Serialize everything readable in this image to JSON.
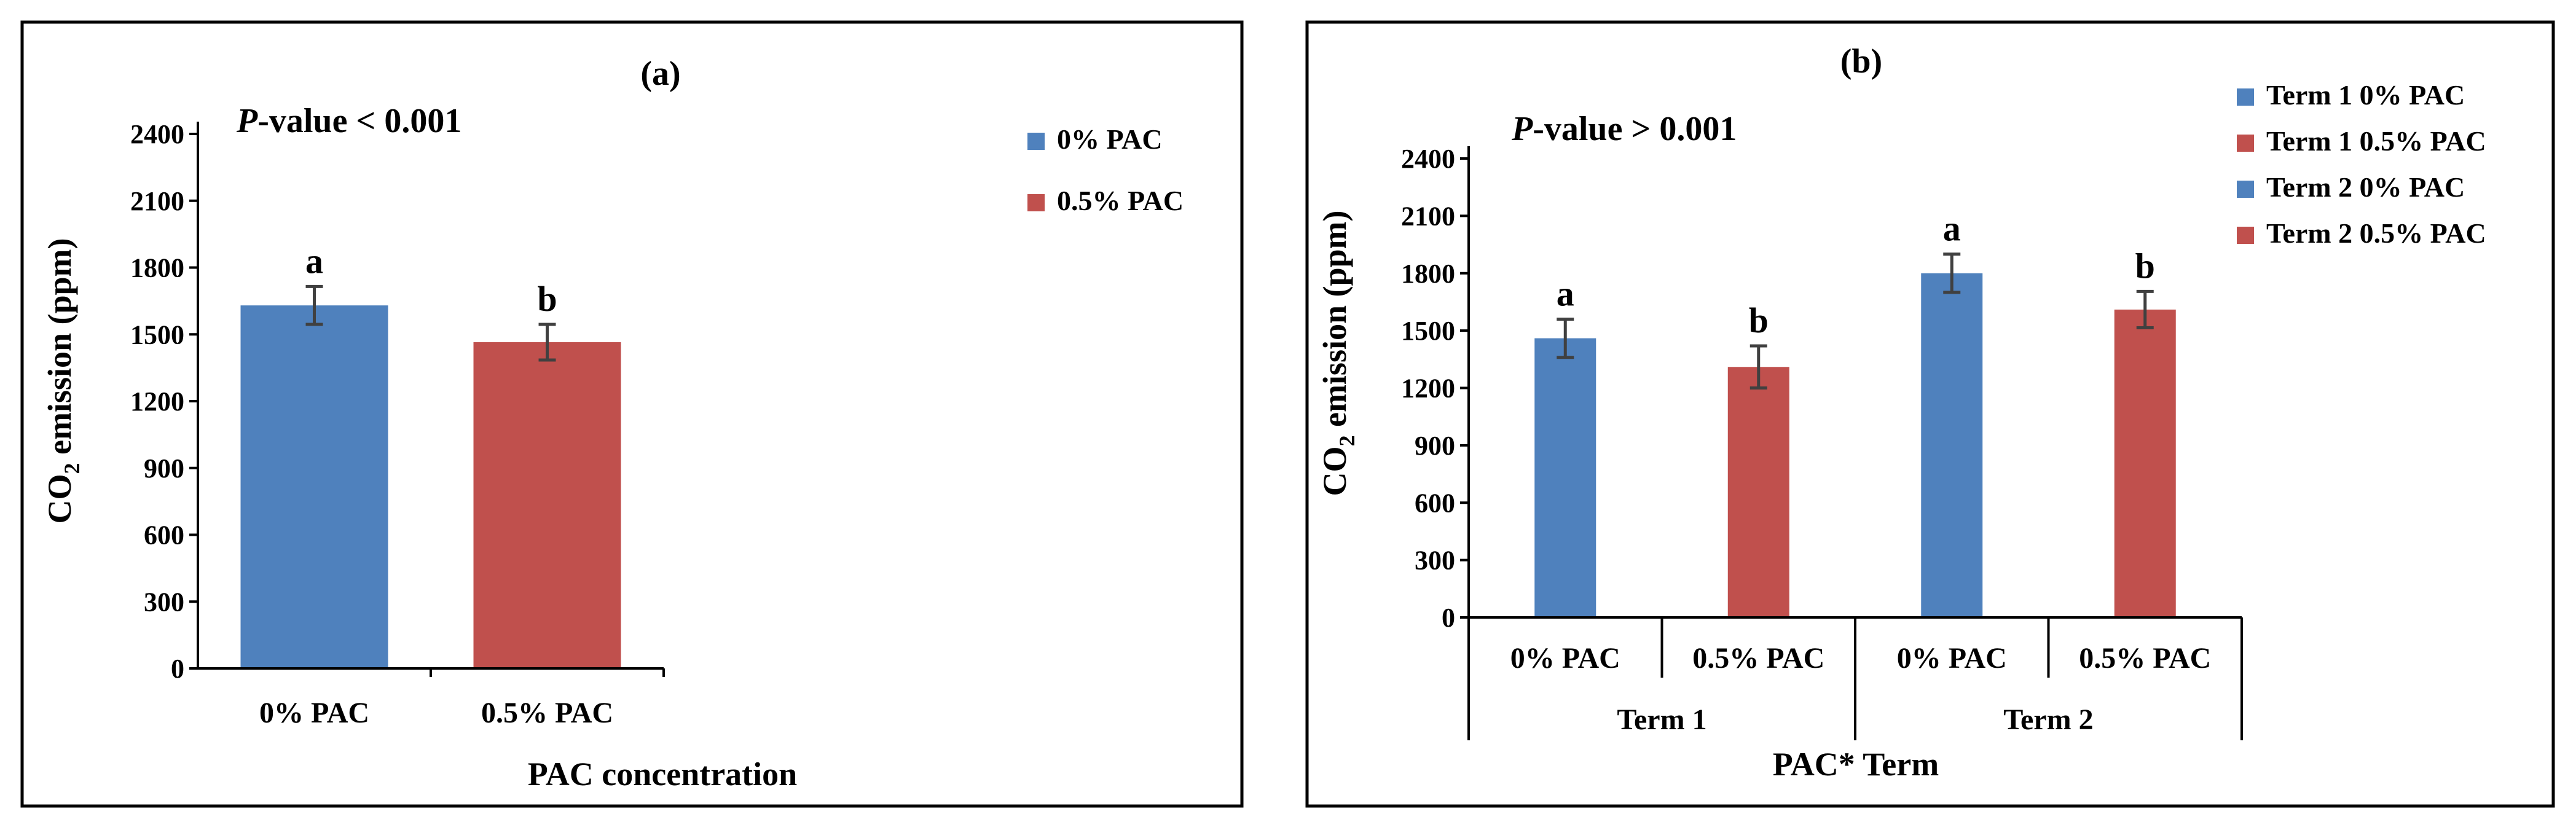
{
  "chart_data": [
    {
      "type": "bar",
      "panel_label": "(a)",
      "p_value_italic": "P",
      "p_value_rest": "-value < 0.001",
      "categories": [
        "0% PAC",
        "0.5% PAC"
      ],
      "values": [
        1630,
        1465
      ],
      "errors": [
        85,
        80
      ],
      "significance": [
        "a",
        "b"
      ],
      "colors": [
        "#4f81bd",
        "#c0504d"
      ],
      "ylabel_main": "CO",
      "ylabel_sub": "2",
      "ylabel_rest": " emission (ppm)",
      "xlabel": "PAC concentration",
      "ylim": [
        0,
        2400
      ],
      "yticks": [
        0,
        300,
        600,
        900,
        1200,
        1500,
        1800,
        2100,
        2400
      ],
      "legend": [
        {
          "name": "0% PAC",
          "color": "#4f81bd"
        },
        {
          "name": "0.5% PAC",
          "color": "#c0504d"
        }
      ],
      "legend_position": "top-right"
    },
    {
      "type": "bar",
      "panel_label": "(b)",
      "p_value_italic": "P",
      "p_value_rest": "-value > 0.001",
      "categories": [
        "0% PAC",
        "0.5% PAC",
        "0% PAC",
        "0.5% PAC"
      ],
      "groups": [
        "Term 1",
        "Term 2"
      ],
      "values": [
        1460,
        1310,
        1800,
        1610
      ],
      "errors": [
        100,
        110,
        100,
        95
      ],
      "significance": [
        "a",
        "b",
        "a",
        "b"
      ],
      "colors": [
        "#4f81bd",
        "#c0504d",
        "#4f81bd",
        "#c0504d"
      ],
      "ylabel_main": "CO",
      "ylabel_sub": "2",
      "ylabel_rest": " emission (ppm)",
      "xlabel": "PAC* Term",
      "ylim": [
        0,
        2400
      ],
      "yticks": [
        0,
        300,
        600,
        900,
        1200,
        1500,
        1800,
        2100,
        2400
      ],
      "legend": [
        {
          "name": "Term 1 0% PAC",
          "color": "#4f81bd"
        },
        {
          "name": "Term 1 0.5% PAC",
          "color": "#c0504d"
        },
        {
          "name": "Term 2 0% PAC",
          "color": "#4f81bd"
        },
        {
          "name": "Term 2 0.5% PAC",
          "color": "#c0504d"
        }
      ],
      "legend_position": "top-right"
    }
  ]
}
